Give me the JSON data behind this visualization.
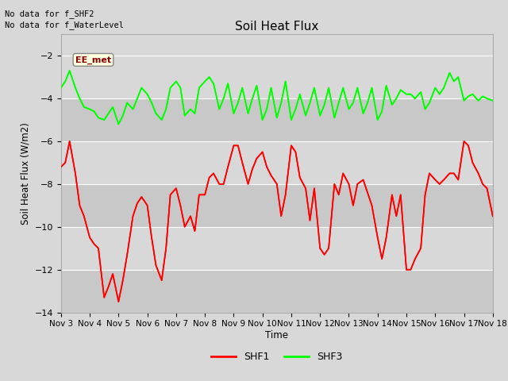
{
  "title": "Soil Heat Flux",
  "ylabel": "Soil Heat Flux (W/m2)",
  "xlabel": "Time",
  "ylim": [
    -14,
    -1
  ],
  "yticks": [
    -14,
    -12,
    -10,
    -8,
    -6,
    -4,
    -2
  ],
  "background_color": "#d8d8d8",
  "plot_bg_color": "#d8d8d8",
  "top_text_1": "No data for f_SHF2",
  "top_text_2": "No data for f_WaterLevel",
  "annotation_box": "EE_met",
  "x_labels": [
    "Nov 3",
    "Nov 4",
    "Nov 5",
    "Nov 6",
    "Nov 7",
    "Nov 8",
    "Nov 9",
    "Nov 10",
    "Nov 11",
    "Nov 12",
    "Nov 13",
    "Nov 14",
    "Nov 15",
    "Nov 16",
    "Nov 17",
    "Nov 18"
  ],
  "shf1_x": [
    0.0,
    0.15,
    0.3,
    0.5,
    0.65,
    0.8,
    1.0,
    1.15,
    1.3,
    1.5,
    1.65,
    1.8,
    2.0,
    2.15,
    2.3,
    2.5,
    2.65,
    2.8,
    3.0,
    3.15,
    3.3,
    3.5,
    3.65,
    3.8,
    4.0,
    4.15,
    4.3,
    4.5,
    4.65,
    4.8,
    5.0,
    5.15,
    5.3,
    5.5,
    5.65,
    5.8,
    6.0,
    6.15,
    6.3,
    6.5,
    6.65,
    6.8,
    7.0,
    7.15,
    7.3,
    7.5,
    7.65,
    7.8,
    8.0,
    8.15,
    8.3,
    8.5,
    8.65,
    8.8,
    9.0,
    9.15,
    9.3,
    9.5,
    9.65,
    9.8,
    10.0,
    10.15,
    10.3,
    10.5,
    10.65,
    10.8,
    11.0,
    11.15,
    11.3,
    11.5,
    11.65,
    11.8,
    12.0,
    12.15,
    12.3,
    12.5,
    12.65,
    12.8,
    13.0,
    13.15,
    13.3,
    13.5,
    13.65,
    13.8,
    14.0,
    14.15,
    14.3,
    14.5,
    14.65,
    14.8,
    15.0
  ],
  "shf1_y": [
    -7.2,
    -7.0,
    -6.0,
    -7.5,
    -9.0,
    -9.5,
    -10.5,
    -10.8,
    -11.0,
    -13.3,
    -12.8,
    -12.2,
    -13.5,
    -12.5,
    -11.3,
    -9.5,
    -8.9,
    -8.6,
    -9.0,
    -10.5,
    -11.8,
    -12.5,
    -11.0,
    -8.5,
    -8.2,
    -9.0,
    -10.0,
    -9.5,
    -10.2,
    -8.5,
    -8.5,
    -7.7,
    -7.5,
    -8.0,
    -8.0,
    -7.2,
    -6.2,
    -6.2,
    -7.0,
    -8.0,
    -7.3,
    -6.8,
    -6.5,
    -7.2,
    -7.6,
    -8.0,
    -9.5,
    -8.5,
    -6.2,
    -6.5,
    -7.7,
    -8.2,
    -9.7,
    -8.2,
    -11.0,
    -11.3,
    -11.0,
    -8.0,
    -8.5,
    -7.5,
    -8.0,
    -9.0,
    -8.0,
    -7.8,
    -8.4,
    -9.0,
    -10.5,
    -11.5,
    -10.5,
    -8.5,
    -9.5,
    -8.5,
    -12.0,
    -12.0,
    -11.5,
    -11.0,
    -8.5,
    -7.5,
    -7.8,
    -8.0,
    -7.8,
    -7.5,
    -7.5,
    -7.8,
    -6.0,
    -6.2,
    -7.0,
    -7.5,
    -8.0,
    -8.2,
    -9.5
  ],
  "shf3_x": [
    0.0,
    0.15,
    0.3,
    0.5,
    0.65,
    0.8,
    1.0,
    1.15,
    1.3,
    1.5,
    1.65,
    1.8,
    2.0,
    2.15,
    2.3,
    2.5,
    2.65,
    2.8,
    3.0,
    3.15,
    3.3,
    3.5,
    3.65,
    3.8,
    4.0,
    4.15,
    4.3,
    4.5,
    4.65,
    4.8,
    5.0,
    5.15,
    5.3,
    5.5,
    5.65,
    5.8,
    6.0,
    6.15,
    6.3,
    6.5,
    6.65,
    6.8,
    7.0,
    7.15,
    7.3,
    7.5,
    7.65,
    7.8,
    8.0,
    8.15,
    8.3,
    8.5,
    8.65,
    8.8,
    9.0,
    9.15,
    9.3,
    9.5,
    9.65,
    9.8,
    10.0,
    10.15,
    10.3,
    10.5,
    10.65,
    10.8,
    11.0,
    11.15,
    11.3,
    11.5,
    11.65,
    11.8,
    12.0,
    12.15,
    12.3,
    12.5,
    12.65,
    12.8,
    13.0,
    13.15,
    13.3,
    13.5,
    13.65,
    13.8,
    14.0,
    14.15,
    14.3,
    14.5,
    14.65,
    14.8,
    15.0
  ],
  "shf3_y": [
    -3.5,
    -3.2,
    -2.7,
    -3.5,
    -4.0,
    -4.4,
    -4.5,
    -4.6,
    -4.9,
    -5.0,
    -4.7,
    -4.4,
    -5.2,
    -4.8,
    -4.2,
    -4.5,
    -4.0,
    -3.5,
    -3.8,
    -4.2,
    -4.7,
    -5.0,
    -4.5,
    -3.5,
    -3.2,
    -3.5,
    -4.8,
    -4.5,
    -4.7,
    -3.5,
    -3.2,
    -3.0,
    -3.3,
    -4.5,
    -4.0,
    -3.3,
    -4.7,
    -4.2,
    -3.5,
    -4.7,
    -4.0,
    -3.4,
    -5.0,
    -4.5,
    -3.5,
    -4.9,
    -4.2,
    -3.2,
    -5.0,
    -4.5,
    -3.8,
    -4.8,
    -4.2,
    -3.5,
    -4.8,
    -4.3,
    -3.5,
    -4.9,
    -4.2,
    -3.5,
    -4.5,
    -4.2,
    -3.5,
    -4.7,
    -4.2,
    -3.5,
    -5.0,
    -4.6,
    -3.4,
    -4.3,
    -4.0,
    -3.6,
    -3.8,
    -3.8,
    -4.0,
    -3.7,
    -4.5,
    -4.2,
    -3.5,
    -3.8,
    -3.5,
    -2.8,
    -3.2,
    -3.0,
    -4.1,
    -3.9,
    -3.8,
    -4.1,
    -3.9,
    -4.0,
    -4.1
  ],
  "shf1_color": "#ff0000",
  "shf3_color": "#00ff00",
  "legend_shf1": "SHF1",
  "legend_shf3": "SHF3",
  "grid_color": "#ffffff",
  "alt_bg_color": "#c8c8c8"
}
